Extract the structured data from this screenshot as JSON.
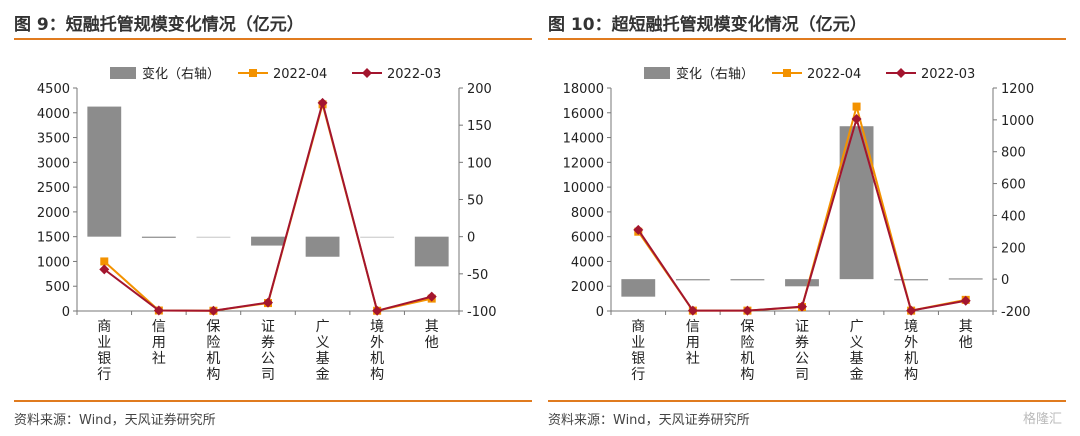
{
  "page": {
    "source_left": "资料来源：Wind，天风证券研究所",
    "source_right": "资料来源：Wind，天风证券研究所",
    "watermark": "格隆汇"
  },
  "colors": {
    "accent_line": "#e07b1f",
    "bar": "#8c8c8c",
    "series_2022_04": "#f39200",
    "series_2022_03": "#a3152e"
  },
  "chart_data": [
    {
      "type": "bar+line",
      "title": "图 9：短融托管规模变化情况（亿元）",
      "categories": [
        "商业银行",
        "信用社",
        "保险机构",
        "证券公司",
        "广义基金",
        "境外机构",
        "其他"
      ],
      "legend": [
        "变化（右轴）",
        "2022-04",
        "2022-03"
      ],
      "legend_placement": "top",
      "ylim_left": [
        0,
        4500
      ],
      "yticks_left": [
        0,
        500,
        1000,
        1500,
        2000,
        2500,
        3000,
        3500,
        4000,
        4500
      ],
      "ylim_right": [
        -100,
        200
      ],
      "yticks_right": [
        -100,
        -50,
        0,
        50,
        100,
        150,
        200
      ],
      "series": [
        {
          "name": "变化（右轴）",
          "kind": "bar",
          "axis": "right",
          "values": [
            175,
            -1,
            0,
            -12,
            -27,
            0,
            -40
          ]
        },
        {
          "name": "2022-04",
          "kind": "line",
          "axis": "left",
          "values": [
            1000,
            10,
            5,
            160,
            4170,
            5,
            250
          ]
        },
        {
          "name": "2022-03",
          "kind": "line",
          "axis": "left",
          "values": [
            840,
            10,
            5,
            170,
            4200,
            5,
            290
          ]
        }
      ]
    },
    {
      "type": "bar+line",
      "title": "图 10：超短融托管规模变化情况（亿元）",
      "categories": [
        "商业银行",
        "信用社",
        "保险机构",
        "证券公司",
        "广义基金",
        "境外机构",
        "其他"
      ],
      "legend": [
        "变化（右轴）",
        "2022-04",
        "2022-03"
      ],
      "legend_placement": "top",
      "ylim_left": [
        0,
        18000
      ],
      "yticks_left": [
        0,
        2000,
        4000,
        6000,
        8000,
        10000,
        12000,
        14000,
        16000,
        18000
      ],
      "ylim_right": [
        -200,
        1200
      ],
      "yticks_right": [
        -200,
        0,
        200,
        400,
        600,
        800,
        1000,
        1200
      ],
      "series": [
        {
          "name": "变化（右轴）",
          "kind": "bar",
          "axis": "right",
          "values": [
            -110,
            -5,
            -5,
            -45,
            960,
            -5,
            5
          ]
        },
        {
          "name": "2022-04",
          "kind": "line",
          "axis": "left",
          "values": [
            6400,
            30,
            30,
            320,
            16500,
            30,
            900
          ]
        },
        {
          "name": "2022-03",
          "kind": "line",
          "axis": "left",
          "values": [
            6550,
            30,
            30,
            350,
            15500,
            30,
            830
          ]
        }
      ]
    }
  ]
}
